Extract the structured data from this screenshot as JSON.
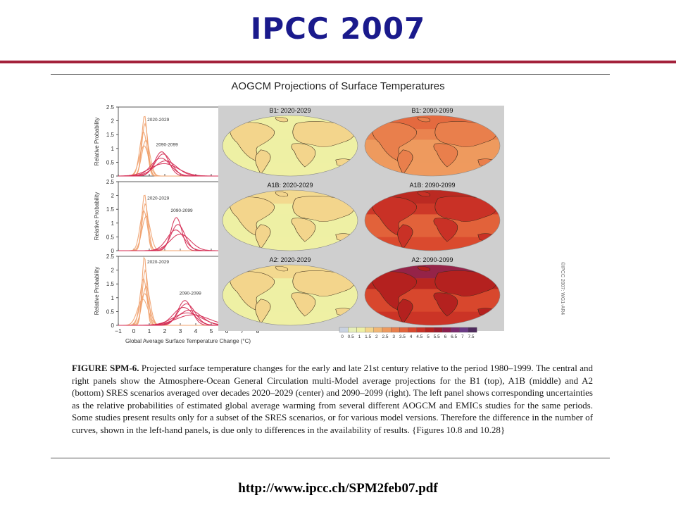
{
  "slide": {
    "title": "IPCC 2007",
    "url": "http://www.ipcc.ch/SPM2feb07.pdf"
  },
  "figure": {
    "title": "AOGCM Projections of Surface Temperatures",
    "caption_label": "FIGURE SPM-6.",
    "caption_text": "Projected surface temperature changes for the early and late 21st century relative to the period 1980–1999. The central and right panels show the Atmosphere-Ocean General Circulation multi-Model average projections for the B1 (top), A1B (middle) and A2 (bottom) SRES scenarios averaged over decades 2020–2029 (center) and 2090–2099 (right). The left panel shows corresponding uncertainties as the relative probabilities of estimated global average warming from several different AOGCM and EMICs studies for the same periods. Some studies present results only for a subset of the SRES scenarios, or for various model versions. Therefore the difference in the number of curves, shown in the left-hand panels, is due only to differences in the availability of results.  {Figures 10.8 and 10.28}",
    "copyright": "©IPCC 2007: WG1-AR4",
    "maps": [
      {
        "label": "B1: 2020-2029",
        "level": 0.8
      },
      {
        "label": "B1: 2090-2099",
        "level": 2.3
      },
      {
        "label": "A1B: 2020-2029",
        "level": 0.9
      },
      {
        "label": "A1B: 2090-2099",
        "level": 3.4
      },
      {
        "label": "A2: 2020-2029",
        "level": 0.85
      },
      {
        "label": "A2: 2090-2099",
        "level": 3.9
      }
    ],
    "colorbar": {
      "ticks": [
        "0",
        "0.5",
        "1",
        "1.5",
        "2",
        "2.5",
        "3",
        "3.5",
        "4",
        "4.5",
        "5",
        "5.5",
        "6",
        "6.5",
        "7",
        "7.5"
      ],
      "colors": [
        "#c9d2e0",
        "#e7efb8",
        "#eef0a4",
        "#f3d58c",
        "#f2b774",
        "#ee9a5e",
        "#e97f4c",
        "#e2623a",
        "#d8472d",
        "#c93126",
        "#b4211f",
        "#9c1a2c",
        "#8a1d4d",
        "#7a2a6e",
        "#6b3a86",
        "#4e2a5c"
      ]
    }
  },
  "chart_data": {
    "type": "line",
    "xlabel": "Global Average Surface Temperature Change (°C)",
    "ylabel": "Relative Probability",
    "xlim": [
      -1,
      8
    ],
    "ylim": [
      0,
      2.5
    ],
    "xticks": [
      "−1",
      "0",
      "1",
      "2",
      "3",
      "4",
      "5",
      "6",
      "7",
      "8"
    ],
    "yticks": [
      "0",
      "0.5",
      "1",
      "1.5",
      "2",
      "2.5"
    ],
    "grid": false,
    "series_colors": {
      "2020-2029": "#f0a06c",
      "2090-2099": "#d42a52"
    },
    "panels": [
      {
        "scenario": "B1",
        "annotations": [
          "2020-2029",
          "2090-2099"
        ],
        "early": [
          {
            "mean": 0.69,
            "sd": 0.18,
            "peak": 2.2
          },
          {
            "mean": 0.72,
            "sd": 0.2,
            "peak": 1.9
          },
          {
            "mean": 0.62,
            "sd": 0.24,
            "peak": 1.6
          },
          {
            "mean": 0.78,
            "sd": 0.26,
            "peak": 1.3
          },
          {
            "mean": 0.66,
            "sd": 0.3,
            "peak": 1.1
          }
        ],
        "late": [
          {
            "mean": 1.8,
            "sd": 0.45,
            "peak": 0.88
          },
          {
            "mean": 1.9,
            "sd": 0.52,
            "peak": 0.8
          },
          {
            "mean": 1.75,
            "sd": 0.62,
            "peak": 0.65
          },
          {
            "mean": 2.05,
            "sd": 0.72,
            "peak": 0.55
          },
          {
            "mean": 1.95,
            "sd": 0.9,
            "peak": 0.45
          }
        ]
      },
      {
        "scenario": "A1B",
        "annotations": [
          "2020-2029",
          "2090-2099"
        ],
        "early": [
          {
            "mean": 0.69,
            "sd": 0.17,
            "peak": 2.05
          },
          {
            "mean": 0.74,
            "sd": 0.2,
            "peak": 1.7
          },
          {
            "mean": 0.64,
            "sd": 0.24,
            "peak": 1.45
          },
          {
            "mean": 0.8,
            "sd": 0.27,
            "peak": 1.25
          }
        ],
        "late": [
          {
            "mean": 2.75,
            "sd": 0.35,
            "peak": 1.2
          },
          {
            "mean": 2.85,
            "sd": 0.45,
            "peak": 0.95
          },
          {
            "mean": 2.7,
            "sd": 0.55,
            "peak": 0.75
          },
          {
            "mean": 3.0,
            "sd": 0.65,
            "peak": 0.6
          }
        ]
      },
      {
        "scenario": "A2",
        "annotations": [
          "2020-2029",
          "2090-2099"
        ],
        "early": [
          {
            "mean": 0.68,
            "sd": 0.15,
            "peak": 2.5
          },
          {
            "mean": 0.74,
            "sd": 0.19,
            "peak": 2.0
          },
          {
            "mean": 0.62,
            "sd": 0.22,
            "peak": 1.7
          },
          {
            "mean": 0.8,
            "sd": 0.26,
            "peak": 1.4
          },
          {
            "mean": 0.7,
            "sd": 0.3,
            "peak": 1.15
          },
          {
            "mean": 0.58,
            "sd": 0.34,
            "peak": 0.95
          }
        ],
        "late": [
          {
            "mean": 3.3,
            "sd": 0.45,
            "peak": 0.9
          },
          {
            "mean": 3.4,
            "sd": 0.55,
            "peak": 0.78
          },
          {
            "mean": 3.2,
            "sd": 0.65,
            "peak": 0.65
          },
          {
            "mean": 3.6,
            "sd": 0.75,
            "peak": 0.55
          },
          {
            "mean": 3.45,
            "sd": 0.9,
            "peak": 0.45
          },
          {
            "mean": 3.8,
            "sd": 1.05,
            "peak": 0.38
          }
        ]
      }
    ]
  }
}
